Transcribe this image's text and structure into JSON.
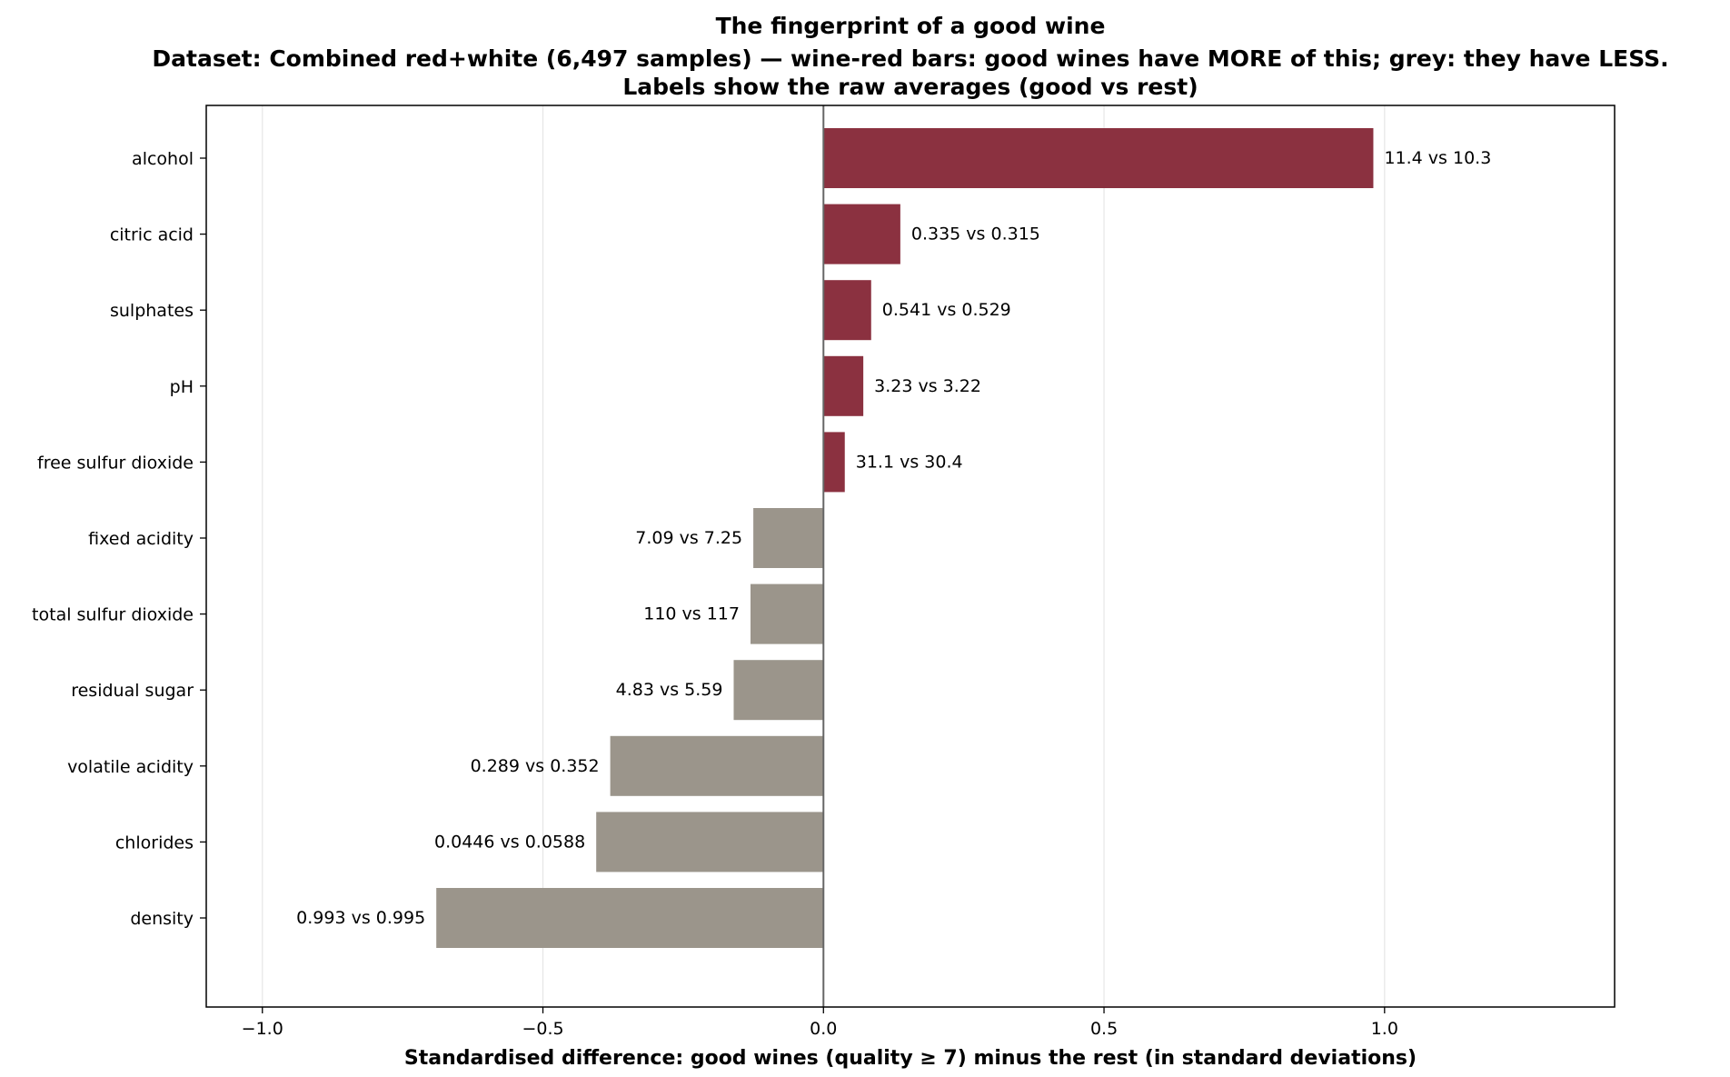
{
  "chart_data": {
    "type": "bar",
    "orientation": "horizontal",
    "title_lines": [
      "The fingerprint of a good wine",
      "Dataset: Combined red+white (6,497 samples) — wine-red bars: good wines have MORE of this; grey: they have LESS.",
      "Labels show the raw averages (good vs rest)"
    ],
    "xlabel": "Standardised difference: good wines (quality ≥ 7) minus the rest (in standard deviations)",
    "ylabel": "",
    "xlim": [
      -1.1,
      1.41
    ],
    "xticks": [
      -1.0,
      -0.5,
      0.0,
      0.5,
      1.0
    ],
    "xtick_labels": [
      "−1.0",
      "−0.5",
      "0.0",
      "0.5",
      "1.0"
    ],
    "grid": "vertical",
    "categories": [
      "alcohol",
      "citric acid",
      "sulphates",
      "pH",
      "free sulfur dioxide",
      "fixed acidity",
      "total sulfur dioxide",
      "residual sugar",
      "volatile acidity",
      "chlorides",
      "density"
    ],
    "values": [
      0.98,
      0.137,
      0.085,
      0.071,
      0.038,
      -0.125,
      -0.13,
      -0.16,
      -0.38,
      -0.405,
      -0.69
    ],
    "bar_labels": [
      "11.4 vs 10.3",
      "0.335 vs 0.315",
      "0.541 vs 0.529",
      "3.23 vs 3.22",
      "31.1 vs 30.4",
      "7.09 vs 7.25",
      "110 vs 117",
      "4.83 vs 5.59",
      "0.289 vs 0.352",
      "0.0446 vs 0.0588",
      "0.993 vs 0.995"
    ],
    "colors": {
      "positive": "#8b3140",
      "negative": "#9b958b",
      "zero_line": "#666666",
      "grid": "#e6e6e6"
    }
  }
}
